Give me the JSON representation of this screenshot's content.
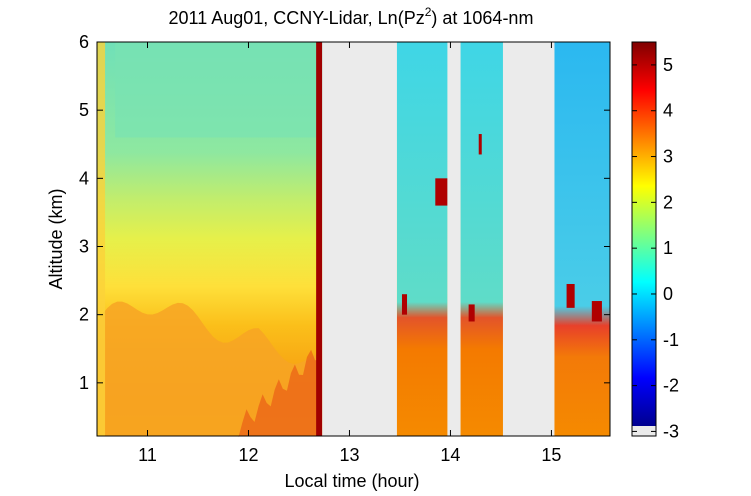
{
  "chart_data": {
    "type": "heatmap",
    "title": "2011 Aug01, CCNY-Lidar, Ln(Pz",
    "title_sup": "2",
    "title_suffix": ") at 1064-nm",
    "xlabel": "Local time (hour)",
    "ylabel": "Altitude (km)",
    "xlim": [
      10.5,
      15.58
    ],
    "ylim": [
      0.22,
      6.0
    ],
    "xticks": [
      11,
      12,
      13,
      14,
      15
    ],
    "yticks": [
      1,
      2,
      3,
      4,
      5,
      6
    ],
    "colorbar": {
      "clim": [
        -3.1,
        5.5
      ],
      "ticks": [
        -3,
        -2,
        -1,
        0,
        1,
        2,
        3,
        4,
        5
      ],
      "colormap": "jet"
    },
    "no_data_intervals": [
      [
        12.73,
        13.47
      ],
      [
        13.97,
        14.1
      ],
      [
        14.52,
        15.03
      ]
    ],
    "no_data_color": "#ebebeb"
  }
}
